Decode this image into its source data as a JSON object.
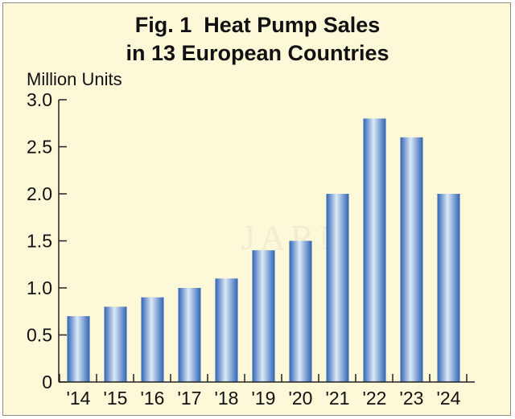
{
  "title_line1": "Fig. 1  Heat Pump Sales",
  "title_line2": "in 13 European Countries",
  "watermark": "JARN",
  "chart_data": {
    "type": "bar",
    "title": "Fig. 1  Heat Pump Sales in 13 European Countries",
    "ylabel": "Million Units",
    "xlabel": "",
    "categories": [
      "'14",
      "'15",
      "'16",
      "'17",
      "'18",
      "'19",
      "'20",
      "'21",
      "'22",
      "'23",
      "'24"
    ],
    "values": [
      0.7,
      0.8,
      0.9,
      1.0,
      1.1,
      1.4,
      1.5,
      2.0,
      2.8,
      2.6,
      2.0
    ],
    "ylim": [
      0,
      3.0
    ],
    "yticks": [
      "0",
      "0.5",
      "1.0",
      "1.5",
      "2.0",
      "2.5",
      "3.0"
    ],
    "grid": false,
    "bar_color": "#3a78c8"
  }
}
